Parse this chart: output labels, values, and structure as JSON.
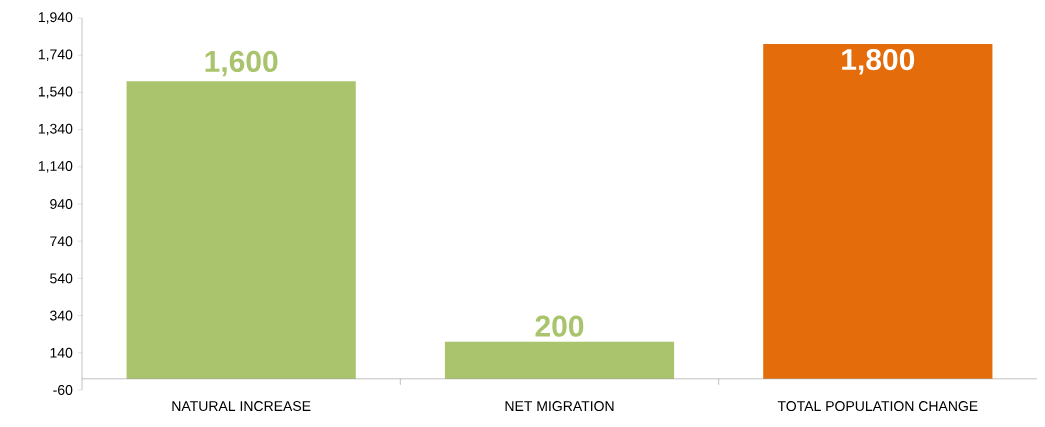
{
  "chart_data": {
    "type": "bar",
    "categories": [
      "NATURAL INCREASE",
      "NET MIGRATION",
      "TOTAL POPULATION CHANGE"
    ],
    "values": [
      1600,
      200,
      1800
    ],
    "colors": [
      "#a9c46c",
      "#a9c46c",
      "#e46c0a"
    ],
    "value_labels": [
      "1,600",
      "200",
      "1,800"
    ],
    "ylim": [
      -60,
      1940
    ],
    "yticks": [
      -60,
      140,
      340,
      540,
      740,
      940,
      {
        "value": 1140,
        "label": "1,140"
      },
      {
        "value": 1340,
        "label": "1,340"
      },
      {
        "value": 1540,
        "label": "1,540"
      },
      {
        "value": 1740,
        "label": "1,740"
      },
      {
        "value": 1940,
        "label": "1,940"
      }
    ],
    "grid": false
  }
}
